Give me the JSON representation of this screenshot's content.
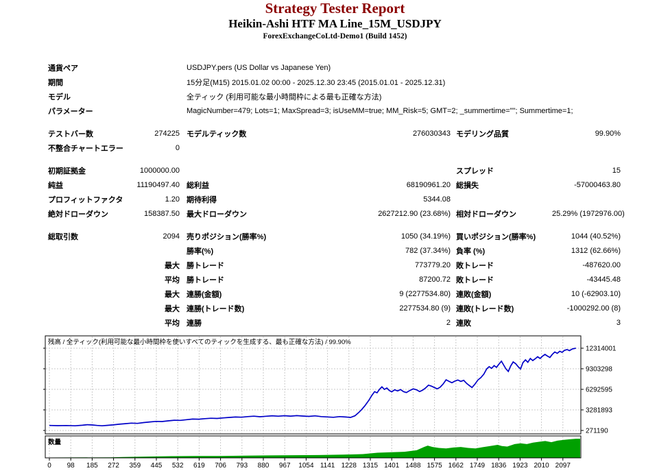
{
  "header": {
    "title": "Strategy Tester Report",
    "subtitle": "Heikin-Ashi HTF MA Line_15M_USDJPY",
    "server": "ForexExchangeCoLtd-Demo1 (Build 1452)"
  },
  "colors": {
    "title": "#8b0000",
    "balance_line": "#0000c8",
    "volume_fill": "#00a000",
    "grid": "#c9c9c9",
    "frame": "#000000"
  },
  "summary": {
    "rows": [
      {
        "wide": true,
        "c1": "通貨ペア",
        "c3": "USDJPY.pers (US Dollar vs Japanese Yen)"
      },
      {
        "wide": true,
        "c1": "期間",
        "c3": "15分足(M15) 2015.01.02 00:00 - 2025.12.30 23:45 (2015.01.01 - 2025.12.31)"
      },
      {
        "wide": true,
        "c1": "モデル",
        "c3": "全ティック (利用可能な最小時間枠による最も正確な方法)"
      },
      {
        "wide": true,
        "c1": "パラメーター",
        "c3": "MagicNumber=479; Lots=1; MaxSpread=3; isUseMM=true; MM_Risk=5; GMT=2; _summertime=\"\"; Summertime=1;"
      },
      {
        "spacer": true
      },
      {
        "c1": "テストバー数",
        "c2": "274225",
        "c3": "モデルティック数",
        "c4": "276030343",
        "c5": "モデリング品質",
        "c6": "99.90%"
      },
      {
        "c1": "不整合チャートエラー",
        "c2": "0",
        "c3": "",
        "c4": "",
        "c5": "",
        "c6": ""
      },
      {
        "spacer": true
      },
      {
        "c1": "初期証拠金",
        "c2": "1000000.00",
        "c3": "",
        "c4": "",
        "c5": "スプレッド",
        "c6": "15"
      },
      {
        "c1": "純益",
        "c2": "11190497.40",
        "c3": "総利益",
        "c4": "68190961.20",
        "c5": "総損失",
        "c6": "-57000463.80"
      },
      {
        "c1": "プロフィットファクタ",
        "c2": "1.20",
        "c3": "期待利得",
        "c4": "5344.08",
        "c5": "",
        "c6": ""
      },
      {
        "c1": "絶対ドローダウン",
        "c2": "158387.50",
        "c3": "最大ドローダウン",
        "c4": "2627212.90 (23.68%)",
        "c5": "相対ドローダウン",
        "c6": "25.29% (1972976.00)"
      },
      {
        "spacer": true
      },
      {
        "c1": "総取引数",
        "c2": "2094",
        "c3": "売りポジション(勝率%)",
        "c4": "1050 (34.19%)",
        "c5": "買いポジション(勝率%)",
        "c6": "1044 (40.52%)"
      },
      {
        "c1": "",
        "c2": "",
        "c3": "勝率(%)",
        "c4": "782 (37.34%)",
        "c5": "負率 (%)",
        "c6": "1312 (62.66%)"
      },
      {
        "c1": "",
        "c2": "最大",
        "c2b": true,
        "c3": "勝トレード",
        "c4": "773779.20",
        "c5": "敗トレード",
        "c6": "-487620.00"
      },
      {
        "c1": "",
        "c2": "平均",
        "c2b": true,
        "c3": "勝トレード",
        "c4": "87200.72",
        "c5": "敗トレード",
        "c6": "-43445.48"
      },
      {
        "c1": "",
        "c2": "最大",
        "c2b": true,
        "c3": "連勝(金額)",
        "c4": "9 (2277534.80)",
        "c5": "連敗(金額)",
        "c6": "10 (-62903.10)"
      },
      {
        "c1": "",
        "c2": "最大",
        "c2b": true,
        "c3": "連勝(トレード数)",
        "c4": "2277534.80 (9)",
        "c5": "連敗(トレード数)",
        "c6": "-1000292.00 (8)"
      },
      {
        "c1": "",
        "c2": "平均",
        "c2b": true,
        "c3": "連勝",
        "c4": "2",
        "c5": "連敗",
        "c6": "3"
      }
    ]
  },
  "chart_data": [
    {
      "type": "line",
      "name": "残高",
      "title": "残高 / 全ティック(利用可能な最小時間枠を使いすべてのティックを生成する、最も正確な方法) / 99.90%",
      "legend_position": "none",
      "grid": true,
      "x_ticks": [
        "0",
        "98",
        "185",
        "272",
        "359",
        "445",
        "532",
        "619",
        "706",
        "793",
        "880",
        "967",
        "1054",
        "1141",
        "1228",
        "1315",
        "1401",
        "1488",
        "1575",
        "1662",
        "1749",
        "1836",
        "1923",
        "2010",
        "2097"
      ],
      "x_tick_step": 87.375,
      "y_grid_values": [
        12314001,
        9303298,
        6292595,
        3281893,
        271190
      ],
      "y_ticks": [
        "12314001",
        "9303298",
        "6292595",
        "3281893",
        "271190"
      ],
      "color": "#0000c8",
      "points": [
        [
          0,
          1000000
        ],
        [
          35,
          970000
        ],
        [
          70,
          990000
        ],
        [
          105,
          950000
        ],
        [
          135,
          1030000
        ],
        [
          155,
          1110000
        ],
        [
          175,
          1070000
        ],
        [
          195,
          1000000
        ],
        [
          215,
          950000
        ],
        [
          235,
          1010000
        ],
        [
          260,
          1080000
        ],
        [
          285,
          1180000
        ],
        [
          310,
          1260000
        ],
        [
          335,
          1340000
        ],
        [
          360,
          1300000
        ],
        [
          385,
          1430000
        ],
        [
          410,
          1520000
        ],
        [
          435,
          1600000
        ],
        [
          460,
          1580000
        ],
        [
          485,
          1680000
        ],
        [
          510,
          1770000
        ],
        [
          535,
          1750000
        ],
        [
          560,
          1850000
        ],
        [
          585,
          1940000
        ],
        [
          610,
          1920000
        ],
        [
          635,
          2000000
        ],
        [
          660,
          2060000
        ],
        [
          685,
          2030000
        ],
        [
          710,
          2110000
        ],
        [
          735,
          2180000
        ],
        [
          760,
          2240000
        ],
        [
          785,
          2210000
        ],
        [
          810,
          2300000
        ],
        [
          835,
          2360000
        ],
        [
          860,
          2280000
        ],
        [
          885,
          2350000
        ],
        [
          910,
          2420000
        ],
        [
          935,
          2360000
        ],
        [
          960,
          2430000
        ],
        [
          985,
          2370000
        ],
        [
          1010,
          2440000
        ],
        [
          1035,
          2380000
        ],
        [
          1060,
          2330000
        ],
        [
          1085,
          2410000
        ],
        [
          1110,
          2300000
        ],
        [
          1135,
          2250000
        ],
        [
          1160,
          2200000
        ],
        [
          1185,
          2300000
        ],
        [
          1210,
          2240000
        ],
        [
          1230,
          2180000
        ],
        [
          1248,
          2420000
        ],
        [
          1262,
          2850000
        ],
        [
          1276,
          3350000
        ],
        [
          1290,
          3950000
        ],
        [
          1304,
          4650000
        ],
        [
          1316,
          5350000
        ],
        [
          1328,
          5950000
        ],
        [
          1338,
          5780000
        ],
        [
          1348,
          6280000
        ],
        [
          1358,
          6650000
        ],
        [
          1368,
          6280000
        ],
        [
          1378,
          6480000
        ],
        [
          1388,
          6120000
        ],
        [
          1398,
          5930000
        ],
        [
          1410,
          6220000
        ],
        [
          1422,
          6060000
        ],
        [
          1434,
          6260000
        ],
        [
          1446,
          5960000
        ],
        [
          1458,
          5820000
        ],
        [
          1472,
          6120000
        ],
        [
          1486,
          6360000
        ],
        [
          1500,
          6210000
        ],
        [
          1512,
          5960000
        ],
        [
          1524,
          6160000
        ],
        [
          1536,
          6480000
        ],
        [
          1548,
          6890000
        ],
        [
          1560,
          6760000
        ],
        [
          1572,
          6560000
        ],
        [
          1584,
          6360000
        ],
        [
          1596,
          6610000
        ],
        [
          1608,
          7080000
        ],
        [
          1620,
          7690000
        ],
        [
          1632,
          7460000
        ],
        [
          1644,
          7260000
        ],
        [
          1656,
          7500000
        ],
        [
          1668,
          7660000
        ],
        [
          1680,
          7460000
        ],
        [
          1692,
          7610000
        ],
        [
          1704,
          7160000
        ],
        [
          1716,
          6810000
        ],
        [
          1726,
          6560000
        ],
        [
          1738,
          7060000
        ],
        [
          1750,
          7660000
        ],
        [
          1762,
          8010000
        ],
        [
          1774,
          8510000
        ],
        [
          1786,
          9280000
        ],
        [
          1796,
          9610000
        ],
        [
          1806,
          9360000
        ],
        [
          1816,
          9760000
        ],
        [
          1826,
          9510000
        ],
        [
          1836,
          9990000
        ],
        [
          1846,
          10410000
        ],
        [
          1856,
          9810000
        ],
        [
          1864,
          9310000
        ],
        [
          1874,
          8910000
        ],
        [
          1884,
          9710000
        ],
        [
          1894,
          10310000
        ],
        [
          1904,
          10060000
        ],
        [
          1914,
          9610000
        ],
        [
          1924,
          9260000
        ],
        [
          1934,
          10210000
        ],
        [
          1944,
          10610000
        ],
        [
          1954,
          10260000
        ],
        [
          1964,
          10810000
        ],
        [
          1974,
          10510000
        ],
        [
          1984,
          10760000
        ],
        [
          1994,
          11060000
        ],
        [
          2004,
          10810000
        ],
        [
          2014,
          11160000
        ],
        [
          2024,
          11410000
        ],
        [
          2034,
          11160000
        ],
        [
          2044,
          10960000
        ],
        [
          2054,
          11410000
        ],
        [
          2064,
          11760000
        ],
        [
          2074,
          11560000
        ],
        [
          2084,
          11860000
        ],
        [
          2094,
          11710000
        ],
        [
          2104,
          12010000
        ],
        [
          2114,
          12110000
        ],
        [
          2124,
          11960000
        ],
        [
          2136,
          12210000
        ],
        [
          2150,
          12314001
        ]
      ]
    },
    {
      "type": "area",
      "name": "数量",
      "unit": "relative",
      "color": "#00a000",
      "points": [
        [
          0,
          0
        ],
        [
          250,
          0.01
        ],
        [
          300,
          0.03
        ],
        [
          400,
          0.05
        ],
        [
          500,
          0.07
        ],
        [
          600,
          0.08
        ],
        [
          700,
          0.08
        ],
        [
          800,
          0.1
        ],
        [
          900,
          0.11
        ],
        [
          1000,
          0.12
        ],
        [
          1100,
          0.13
        ],
        [
          1200,
          0.15
        ],
        [
          1280,
          0.18
        ],
        [
          1340,
          0.25
        ],
        [
          1400,
          0.28
        ],
        [
          1450,
          0.3
        ],
        [
          1500,
          0.38
        ],
        [
          1530,
          0.55
        ],
        [
          1545,
          0.62
        ],
        [
          1565,
          0.55
        ],
        [
          1590,
          0.5
        ],
        [
          1620,
          0.47
        ],
        [
          1650,
          0.52
        ],
        [
          1680,
          0.55
        ],
        [
          1710,
          0.5
        ],
        [
          1740,
          0.47
        ],
        [
          1770,
          0.54
        ],
        [
          1800,
          0.6
        ],
        [
          1830,
          0.66
        ],
        [
          1848,
          0.6
        ],
        [
          1870,
          0.57
        ],
        [
          1900,
          0.7
        ],
        [
          1925,
          0.74
        ],
        [
          1950,
          0.7
        ],
        [
          1975,
          0.78
        ],
        [
          2000,
          0.82
        ],
        [
          2025,
          0.86
        ],
        [
          2050,
          0.8
        ],
        [
          2075,
          0.88
        ],
        [
          2100,
          0.92
        ],
        [
          2125,
          0.95
        ],
        [
          2150,
          0.98
        ]
      ]
    }
  ]
}
